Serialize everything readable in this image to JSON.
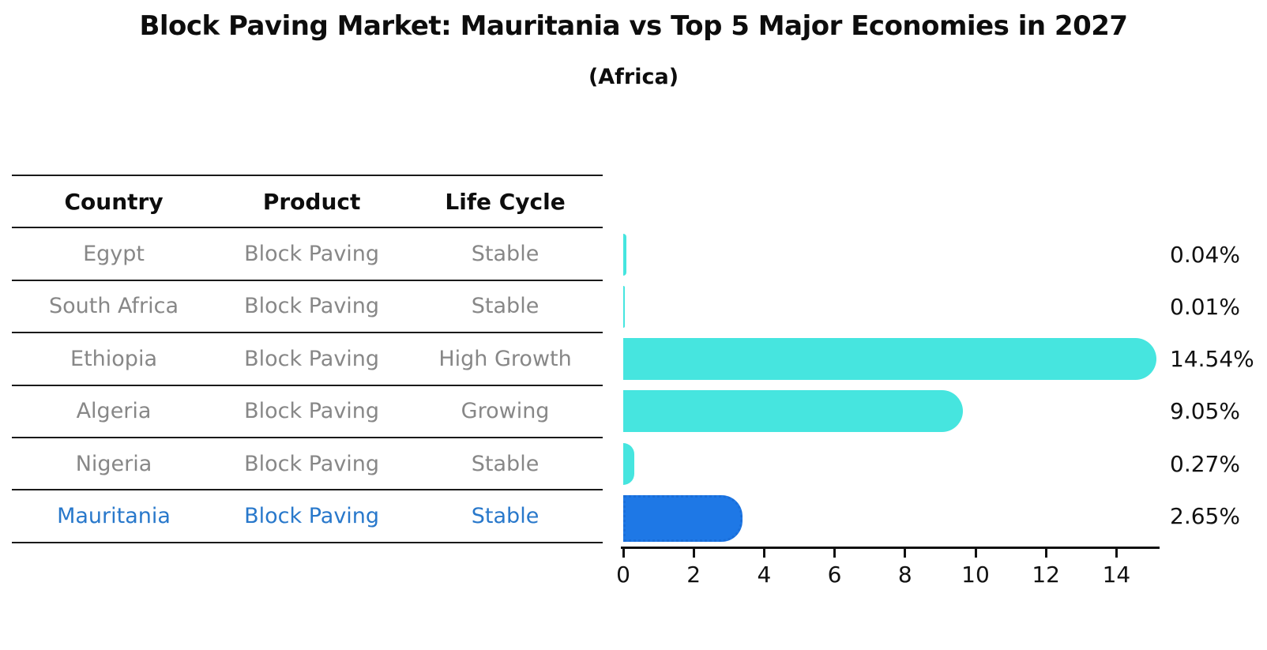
{
  "title": "Block Paving Market: Mauritania vs Top 5 Major Economies in 2027",
  "subtitle": "(Africa)",
  "table": {
    "headers": [
      "Country",
      "Product",
      "Life Cycle"
    ],
    "rows": [
      {
        "country": "Egypt",
        "product": "Block Paving",
        "life_cycle": "Stable",
        "highlight": false
      },
      {
        "country": "South Africa",
        "product": "Block Paving",
        "life_cycle": "Stable",
        "highlight": false
      },
      {
        "country": "Ethiopia",
        "product": "Block Paving",
        "life_cycle": "High Growth",
        "highlight": false
      },
      {
        "country": "Algeria",
        "product": "Block Paving",
        "life_cycle": "Growing",
        "highlight": false
      },
      {
        "country": "Nigeria",
        "product": "Block Paving",
        "life_cycle": "Stable",
        "highlight": false
      },
      {
        "country": "Mauritania",
        "product": "Block Paving",
        "life_cycle": "Stable",
        "highlight": true
      }
    ]
  },
  "chart_data": {
    "type": "bar",
    "orientation": "horizontal",
    "title": "Block Paving Market: Mauritania vs Top 5 Major Economies in 2027",
    "subtitle": "(Africa)",
    "categories": [
      "Egypt",
      "South Africa",
      "Ethiopia",
      "Algeria",
      "Nigeria",
      "Mauritania"
    ],
    "values": [
      0.04,
      0.01,
      14.54,
      9.05,
      0.27,
      2.65
    ],
    "value_labels": [
      "0.04%",
      "0.01%",
      "14.54%",
      "9.05%",
      "0.27%",
      "2.65%"
    ],
    "highlight_index": 5,
    "x_ticks": [
      0,
      2,
      4,
      6,
      8,
      10,
      12,
      14
    ],
    "xlim": [
      0,
      15.2
    ],
    "grid": false,
    "legend": false
  },
  "colors": {
    "bar_default": "#46E5DF",
    "bar_highlight": "#1E78E6",
    "bar_highlight_border": "#1A6ED9",
    "highlight_text": "#2878CB",
    "row_text": "#878787",
    "header_text": "#0d0d0d",
    "axis": "#111111"
  }
}
